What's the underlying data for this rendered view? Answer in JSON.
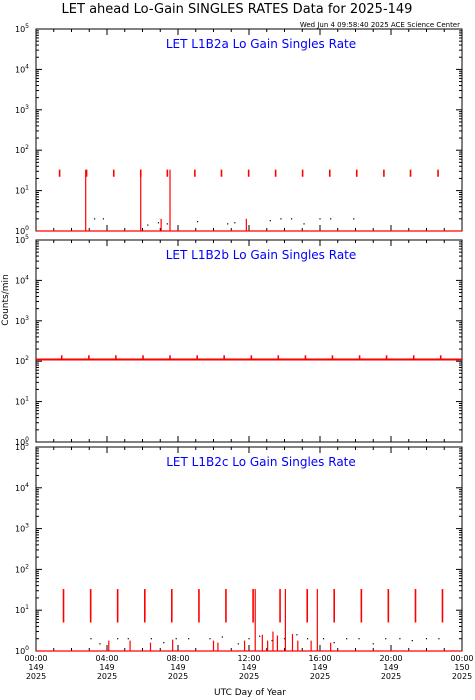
{
  "figure": {
    "title": "LET ahead Lo-Gain SINGLES RATES Data for 2025-149",
    "timestamp": "Wed Jun  4 09:58:40 2025 ACE Science Center",
    "xlabel": "UTC Day of Year",
    "ylabel": "Counts/min"
  },
  "colors": {
    "data": "#ff0000",
    "panel_title": "#0000ff",
    "axes": "#000000"
  },
  "chart_data": [
    {
      "type": "line",
      "title": "LET L1B2a Lo Gain Singles Rate",
      "yscale": "log",
      "ylim": [
        1,
        100000
      ],
      "xlim": [
        0,
        24
      ],
      "baseline": 1.0,
      "dotted_level": 2,
      "dotted_x": [
        3.3,
        3.8,
        6.3,
        6.9,
        7.4,
        9.1,
        10.8,
        11.2,
        13.2,
        13.8,
        14.4,
        15.1,
        16.0,
        16.6,
        17.9
      ],
      "dotted_values": [
        2,
        2,
        1.4,
        1.6,
        1.5,
        1.7,
        1.5,
        1.6,
        1.8,
        2,
        2,
        1.5,
        2,
        2,
        2
      ],
      "periodic_x": [
        1.33,
        2.85,
        4.38,
        5.9,
        7.4,
        8.95,
        10.45,
        11.98,
        13.5,
        15.02,
        16.55,
        18.07,
        19.6,
        21.1,
        22.65
      ],
      "periodic_low": 22,
      "periodic_high": 33,
      "spikes": [
        {
          "x": 2.8,
          "value": 33,
          "base": 1
        },
        {
          "x": 5.9,
          "value": 33,
          "base": 1
        },
        {
          "x": 7.05,
          "value": 2,
          "base": 1
        },
        {
          "x": 7.55,
          "value": 33,
          "base": 1
        },
        {
          "x": 11.85,
          "value": 2,
          "base": 1
        }
      ],
      "ytick_values": [
        1,
        10,
        100,
        1000,
        10000,
        100000
      ],
      "ytick_labels": [
        "10^0",
        "10^1",
        "10^2",
        "10^3",
        "10^4",
        "10^5"
      ]
    },
    {
      "type": "line",
      "title": "LET L1B2b Lo Gain Singles Rate",
      "yscale": "log",
      "ylim": [
        1,
        100000
      ],
      "xlim": [
        0,
        24
      ],
      "baseline": 110,
      "periodic_x": [
        1.45,
        2.98,
        4.5,
        6.03,
        7.55,
        9.08,
        10.6,
        12.13,
        13.65,
        15.18,
        16.7,
        18.23,
        19.75,
        21.28,
        22.8
      ],
      "periodic_low": 110,
      "periodic_high": 140,
      "spikes": [],
      "ytick_values": [
        1,
        10,
        100,
        1000,
        10000,
        100000
      ],
      "ytick_labels": [
        "10^0",
        "10^1",
        "10^2",
        "10^3",
        "10^4",
        "10^5"
      ]
    },
    {
      "type": "line",
      "title": "LET L1B2c Lo Gain Singles Rate",
      "yscale": "log",
      "ylim": [
        1,
        100000
      ],
      "xlim": [
        0,
        24
      ],
      "baseline": 1.0,
      "dotted_level": 2,
      "dotted_x": [
        3.1,
        3.6,
        4.6,
        5.2,
        6.5,
        7.2,
        7.9,
        8.6,
        9.8,
        10.5,
        11.4,
        12.0,
        12.6,
        13.3,
        14.0,
        14.7,
        15.3,
        16.2,
        16.8,
        17.5,
        18.2,
        19.0,
        19.7,
        20.5,
        21.2,
        22.0,
        22.7
      ],
      "dotted_values": [
        2,
        1.5,
        2,
        2,
        2,
        1.6,
        2,
        2,
        2,
        2.2,
        1.5,
        2,
        2.3,
        1.8,
        2,
        2.5,
        2,
        2,
        1.6,
        2,
        2,
        1.5,
        2,
        2,
        1.8,
        2,
        2
      ],
      "periodic_x": [
        1.55,
        3.08,
        4.6,
        6.13,
        7.65,
        9.18,
        10.7,
        12.23,
        13.75,
        15.28,
        16.8,
        18.33,
        19.85,
        21.38,
        22.9
      ],
      "periodic_low": 5,
      "periodic_high": 33,
      "spikes": [
        {
          "x": 4.1,
          "value": 1.8,
          "base": 1
        },
        {
          "x": 5.3,
          "value": 1.8,
          "base": 1
        },
        {
          "x": 6.45,
          "value": 1.6,
          "base": 1
        },
        {
          "x": 7.7,
          "value": 1.9,
          "base": 1
        },
        {
          "x": 10.0,
          "value": 1.8,
          "base": 1
        },
        {
          "x": 10.25,
          "value": 1.6,
          "base": 1
        },
        {
          "x": 11.75,
          "value": 1.8,
          "base": 1
        },
        {
          "x": 12.35,
          "value": 33,
          "base": 1
        },
        {
          "x": 12.75,
          "value": 2.5,
          "base": 1
        },
        {
          "x": 13.05,
          "value": 1.8,
          "base": 1
        },
        {
          "x": 13.35,
          "value": 3.0,
          "base": 1
        },
        {
          "x": 13.6,
          "value": 2.4,
          "base": 1
        },
        {
          "x": 14.05,
          "value": 33,
          "base": 1
        },
        {
          "x": 14.45,
          "value": 2.6,
          "base": 1
        },
        {
          "x": 14.75,
          "value": 1.8,
          "base": 1
        },
        {
          "x": 15.5,
          "value": 1.8,
          "base": 1
        },
        {
          "x": 15.85,
          "value": 33,
          "base": 1
        },
        {
          "x": 16.6,
          "value": 1.6,
          "base": 1
        }
      ],
      "ytick_values": [
        1,
        10,
        100,
        1000,
        10000,
        100000
      ],
      "ytick_labels": [
        "10^0",
        "10^1",
        "10^2",
        "10^3",
        "10^4",
        "10^5"
      ]
    }
  ],
  "xaxis": {
    "ticks": [
      {
        "hour": 0,
        "l1": "00:00",
        "l2": "149",
        "l3": "2025"
      },
      {
        "hour": 4,
        "l1": "04:00",
        "l2": "149",
        "l3": "2025"
      },
      {
        "hour": 8,
        "l1": "08:00",
        "l2": "149",
        "l3": "2025"
      },
      {
        "hour": 12,
        "l1": "12:00",
        "l2": "149",
        "l3": "2025"
      },
      {
        "hour": 16,
        "l1": "16:00",
        "l2": "149",
        "l3": "2025"
      },
      {
        "hour": 20,
        "l1": "20:00",
        "l2": "149",
        "l3": "2025"
      },
      {
        "hour": 24,
        "l1": "00:00",
        "l2": "150",
        "l3": "2025"
      }
    ]
  }
}
